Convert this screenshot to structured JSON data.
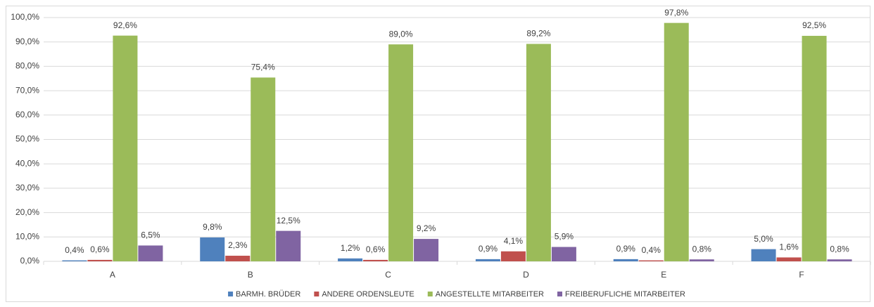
{
  "chart_data": {
    "type": "bar",
    "categories": [
      "A",
      "B",
      "C",
      "D",
      "E",
      "F"
    ],
    "series": [
      {
        "name": "BARMH. BRÜDER",
        "color": "#4f81bd",
        "values": [
          0.4,
          9.8,
          1.2,
          0.9,
          0.9,
          5.0
        ],
        "value_labels": [
          "0,4%",
          "9,8%",
          "1,2%",
          "0,9%",
          "0,9%",
          "5,0%"
        ]
      },
      {
        "name": "ANDERE ORDENSLEUTE",
        "color": "#c0504d",
        "values": [
          0.6,
          2.3,
          0.6,
          4.1,
          0.4,
          1.6
        ],
        "value_labels": [
          "0,6%",
          "2,3%",
          "0,6%",
          "4,1%",
          "0,4%",
          "1,6%"
        ]
      },
      {
        "name": "ANGESTELLTE MITARBEITER",
        "color": "#9bbb59",
        "values": [
          92.6,
          75.4,
          89.0,
          89.2,
          97.8,
          92.5
        ],
        "value_labels": [
          "92,6%",
          "75,4%",
          "89,0%",
          "89,2%",
          "97,8%",
          "92,5%"
        ]
      },
      {
        "name": "FREIBERUFLICHE MITARBEITER",
        "color": "#8064a2",
        "values": [
          6.5,
          12.5,
          9.2,
          5.9,
          0.8,
          0.8
        ],
        "value_labels": [
          "6,5%",
          "12,5%",
          "9,2%",
          "5,9%",
          "0,8%",
          "0,8%"
        ]
      }
    ],
    "ylim": [
      0,
      100
    ],
    "yticks": [
      {
        "value": 0,
        "label": "0,0%"
      },
      {
        "value": 10,
        "label": "10,0%"
      },
      {
        "value": 20,
        "label": "20,0%"
      },
      {
        "value": 30,
        "label": "30,0%"
      },
      {
        "value": 40,
        "label": "40,0%"
      },
      {
        "value": 50,
        "label": "50,0%"
      },
      {
        "value": 60,
        "label": "60,0%"
      },
      {
        "value": 70,
        "label": "70,0%"
      },
      {
        "value": 80,
        "label": "80,0%"
      },
      {
        "value": 90,
        "label": "90,0%"
      },
      {
        "value": 100,
        "label": "100,0%"
      }
    ],
    "grid": true,
    "legend": "bottom"
  }
}
